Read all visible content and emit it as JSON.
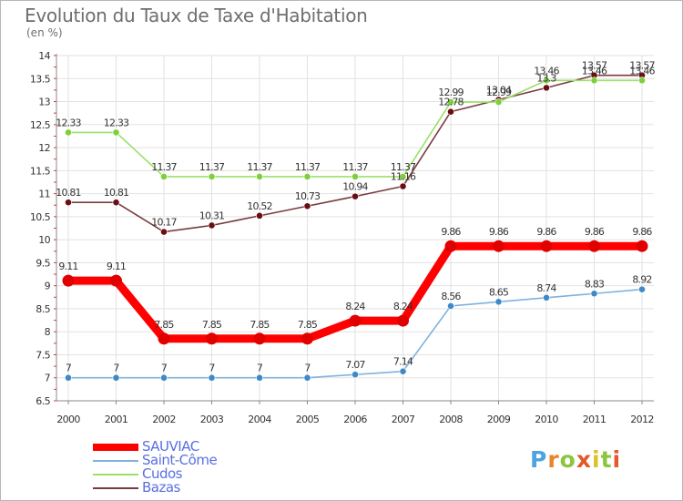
{
  "chart_data": {
    "type": "line",
    "title": "Evolution du Taux de Taxe d'Habitation",
    "subtitle": "(en %)",
    "categories": [
      "2000",
      "2001",
      "2002",
      "2003",
      "2004",
      "2005",
      "2006",
      "2007",
      "2008",
      "2009",
      "2010",
      "2011",
      "2012"
    ],
    "ylim": [
      6.5,
      14
    ],
    "yticks": [
      6.5,
      7,
      7.5,
      8,
      8.5,
      9,
      9.5,
      10,
      10.5,
      11,
      11.5,
      12,
      12.5,
      13,
      13.5,
      14
    ],
    "ytick_labels": [
      "6.5",
      "7",
      "7.5",
      "8",
      "8.5",
      "9",
      "9.5",
      "10",
      "10.5",
      "11",
      "11.5",
      "12",
      "12.5",
      "13",
      "13.5",
      "14"
    ],
    "grid": true,
    "legend_position": "bottom-left",
    "series": [
      {
        "name": "SAUVIAC",
        "color": "#e00000",
        "line_color": "#ff0000",
        "emphasis": true,
        "values": [
          9.11,
          9.11,
          7.85,
          7.85,
          7.85,
          7.85,
          8.24,
          8.24,
          9.86,
          9.86,
          9.86,
          9.86,
          9.86
        ],
        "labels": [
          "9.11",
          "9.11",
          "7.85",
          "7.85",
          "7.85",
          "7.85",
          "8.24",
          "8.24",
          "9.86",
          "9.86",
          "9.86",
          "9.86",
          "9.86"
        ]
      },
      {
        "name": "Saint-Côme",
        "color": "#3f89c8",
        "line_color": "#7fb2de",
        "emphasis": false,
        "values": [
          7,
          7,
          7,
          7,
          7,
          7,
          7.07,
          7.14,
          8.56,
          8.65,
          8.74,
          8.83,
          8.92
        ],
        "labels": [
          "7",
          "7",
          "7",
          "7",
          "7",
          "7",
          "7.07",
          "7.14",
          "8.56",
          "8.65",
          "8.74",
          "8.83",
          "8.92"
        ]
      },
      {
        "name": "Cudos",
        "color": "#7ecf3a",
        "line_color": "#9be06a",
        "emphasis": false,
        "values": [
          12.33,
          12.33,
          11.37,
          11.37,
          11.37,
          11.37,
          11.37,
          11.37,
          12.99,
          12.99,
          13.46,
          13.46,
          13.46
        ],
        "labels": [
          "12.33",
          "12.33",
          "11.37",
          "11.37",
          "11.37",
          "11.37",
          "11.37",
          "11.37",
          "12.99",
          "12.99",
          "13.46",
          "13.46",
          "13.46"
        ]
      },
      {
        "name": "Bazas",
        "color": "#6b0e12",
        "line_color": "#7a3b3e",
        "emphasis": false,
        "values": [
          10.81,
          10.81,
          10.17,
          10.31,
          10.52,
          10.73,
          10.94,
          11.16,
          12.78,
          13.04,
          13.3,
          13.57,
          13.57
        ],
        "labels": [
          "10.81",
          "10.81",
          "10.17",
          "10.31",
          "10.52",
          "10.73",
          "10.94",
          "11.16",
          "12.78",
          "13.04",
          "13.3",
          "13.57",
          "13.57"
        ]
      }
    ]
  },
  "brand": {
    "letters": [
      "P",
      "r",
      "o",
      "x",
      "i",
      "t",
      "i"
    ]
  }
}
